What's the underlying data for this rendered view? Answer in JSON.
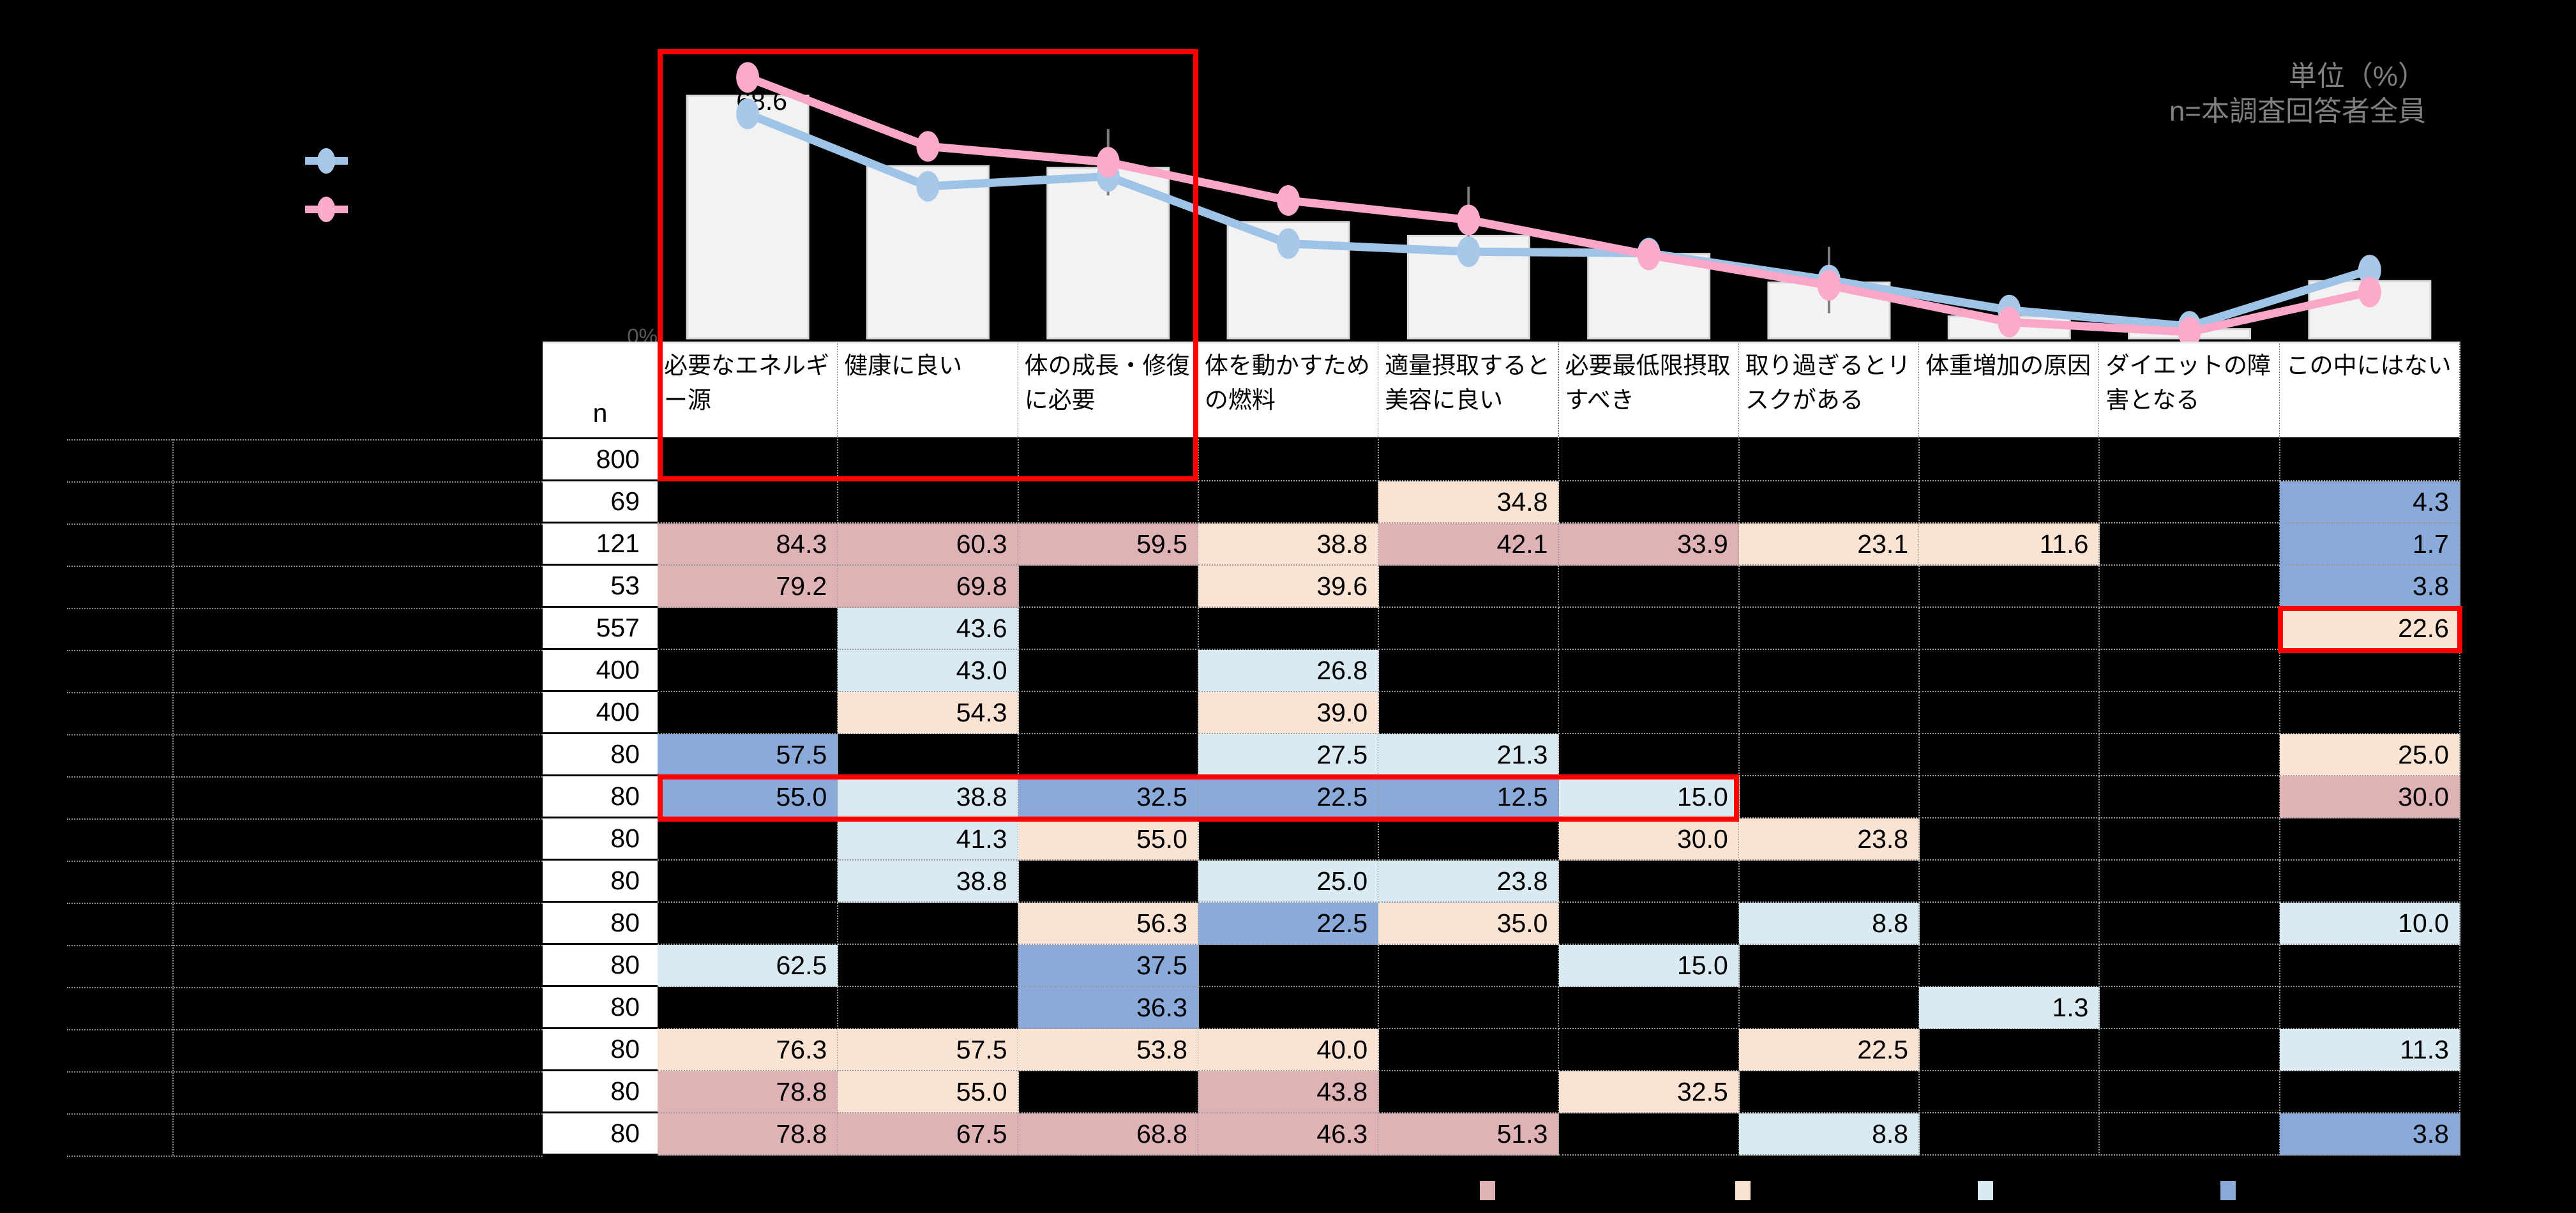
{
  "unit_note": {
    "line1": "単位（%）",
    "line2": "n=本調査回答者全員"
  },
  "axis": {
    "zero_label": "0%"
  },
  "colors": {
    "background": "#000000",
    "bar_fill": "#f2f2f2",
    "bar_stroke": "#d9d9d9",
    "line_blue": "#9dc3e6",
    "marker_blue": "#a9c7e8",
    "line_pink": "#f9a6c9",
    "marker_pink": "#fbaacb",
    "annotation_red": "#fe0000",
    "cell_high10": "#dfb2b6",
    "cell_high5": "#fbe3d4",
    "cell_low5": "#d9eaf3",
    "cell_low10": "#8aaad9",
    "note_gray": "#808080",
    "axis_gray": "#595959"
  },
  "chart_data": {
    "type": "bar+line",
    "unit": "%",
    "categories": [
      "必要なエネルギー源",
      "健康に良い",
      "体の成長・修復に必要",
      "体を動かすための燃料",
      "適量摂取すると美容に良い",
      "必要最低限摂取すべき",
      "取り過ぎるとリスクがある",
      "体重増加の原因",
      "ダイエットの障害となる",
      "この中にはない"
    ],
    "bar_series": {
      "name": "total-bars",
      "values": [
        68.6,
        48.7,
        48.2,
        32.9,
        29.0,
        23.9,
        15.8,
        6.2,
        2.6,
        16.2
      ]
    },
    "bar_labels": [
      {
        "index": 0,
        "text": "68.6"
      }
    ],
    "line_series": [
      {
        "name": "series-blue",
        "color": "#9dc3e6",
        "values": [
          63.5,
          43.0,
          45.8,
          26.8,
          24.5,
          24.1,
          16.5,
          8.0,
          3.4,
          19.3
        ]
      },
      {
        "name": "series-pink",
        "color": "#f9a6c9",
        "values": [
          73.8,
          54.3,
          49.8,
          39.0,
          33.5,
          23.6,
          15.0,
          4.6,
          1.8,
          13.1
        ]
      }
    ],
    "error_bars": [
      {
        "index": 2,
        "series": "series-pink"
      },
      {
        "index": 4,
        "series": "series-pink"
      },
      {
        "index": 6,
        "series": "series-blue"
      }
    ],
    "ylim": [
      0,
      80
    ],
    "y_zero_label": "0%",
    "legend_position": "top-left",
    "grid": false
  },
  "table": {
    "n_header": "n",
    "columns": [
      "必要なエネルギー源",
      "健康に良い",
      "体の成長・修復に必要",
      "体を動かすための燃料",
      "適量摂取すると美容に良い",
      "必要最低限摂取すべき",
      "取り過ぎるとリスクがある",
      "体重増加の原因",
      "ダイエットの障害となる",
      "この中にはない"
    ],
    "style_legend": {
      "p2": "dark-pink-high",
      "p1": "peach-high",
      "b1": "light-blue-low",
      "b2": "medium-blue-low"
    },
    "rows": [
      {
        "n": "800",
        "cells": [
          null,
          null,
          null,
          null,
          null,
          null,
          null,
          null,
          null,
          null
        ]
      },
      {
        "n": "69",
        "cells": [
          null,
          null,
          null,
          null,
          [
            "34.8",
            "p1"
          ],
          null,
          null,
          null,
          null,
          [
            "4.3",
            "b2"
          ]
        ]
      },
      {
        "n": "121",
        "cells": [
          [
            "84.3",
            "p2"
          ],
          [
            "60.3",
            "p2"
          ],
          [
            "59.5",
            "p2"
          ],
          [
            "38.8",
            "p1"
          ],
          [
            "42.1",
            "p2"
          ],
          [
            "33.9",
            "p2"
          ],
          [
            "23.1",
            "p1"
          ],
          [
            "11.6",
            "p1"
          ],
          null,
          [
            "1.7",
            "b2"
          ]
        ]
      },
      {
        "n": "53",
        "cells": [
          [
            "79.2",
            "p2"
          ],
          [
            "69.8",
            "p2"
          ],
          null,
          [
            "39.6",
            "p1"
          ],
          null,
          null,
          null,
          null,
          null,
          [
            "3.8",
            "b2"
          ]
        ]
      },
      {
        "n": "557",
        "cells": [
          null,
          [
            "43.6",
            "b1"
          ],
          null,
          null,
          null,
          null,
          null,
          null,
          null,
          [
            "22.6",
            "p1"
          ]
        ]
      },
      {
        "n": "400",
        "cells": [
          null,
          [
            "43.0",
            "b1"
          ],
          null,
          [
            "26.8",
            "b1"
          ],
          null,
          null,
          null,
          null,
          null,
          null
        ]
      },
      {
        "n": "400",
        "cells": [
          null,
          [
            "54.3",
            "p1"
          ],
          null,
          [
            "39.0",
            "p1"
          ],
          null,
          null,
          null,
          null,
          null,
          null
        ]
      },
      {
        "n": "80",
        "cells": [
          [
            "57.5",
            "b2"
          ],
          null,
          null,
          [
            "27.5",
            "b1"
          ],
          [
            "21.3",
            "b1"
          ],
          null,
          null,
          null,
          null,
          [
            "25.0",
            "p1"
          ]
        ]
      },
      {
        "n": "80",
        "cells": [
          [
            "55.0",
            "b2"
          ],
          [
            "38.8",
            "b1"
          ],
          [
            "32.5",
            "b2"
          ],
          [
            "22.5",
            "b2"
          ],
          [
            "12.5",
            "b2"
          ],
          [
            "15.0",
            "b1"
          ],
          null,
          null,
          null,
          [
            "30.0",
            "p2"
          ]
        ]
      },
      {
        "n": "80",
        "cells": [
          null,
          [
            "41.3",
            "b1"
          ],
          [
            "55.0",
            "p1"
          ],
          null,
          null,
          [
            "30.0",
            "p1"
          ],
          [
            "23.8",
            "p1"
          ],
          null,
          null,
          null
        ]
      },
      {
        "n": "80",
        "cells": [
          null,
          [
            "38.8",
            "b1"
          ],
          null,
          [
            "25.0",
            "b1"
          ],
          [
            "23.8",
            "b1"
          ],
          null,
          null,
          null,
          null,
          null
        ]
      },
      {
        "n": "80",
        "cells": [
          null,
          null,
          [
            "56.3",
            "p1"
          ],
          [
            "22.5",
            "b2"
          ],
          [
            "35.0",
            "p1"
          ],
          null,
          [
            "8.8",
            "b1"
          ],
          null,
          null,
          [
            "10.0",
            "b1"
          ]
        ]
      },
      {
        "n": "80",
        "cells": [
          [
            "62.5",
            "b1"
          ],
          null,
          [
            "37.5",
            "b2"
          ],
          null,
          null,
          [
            "15.0",
            "b1"
          ],
          null,
          null,
          null,
          null
        ]
      },
      {
        "n": "80",
        "cells": [
          null,
          null,
          [
            "36.3",
            "b2"
          ],
          null,
          null,
          null,
          null,
          [
            "1.3",
            "b1"
          ],
          null,
          null
        ]
      },
      {
        "n": "80",
        "cells": [
          [
            "76.3",
            "p1"
          ],
          [
            "57.5",
            "p1"
          ],
          [
            "53.8",
            "p1"
          ],
          [
            "40.0",
            "p1"
          ],
          null,
          null,
          [
            "22.5",
            "p1"
          ],
          null,
          null,
          [
            "11.3",
            "b1"
          ]
        ]
      },
      {
        "n": "80",
        "cells": [
          [
            "78.8",
            "p2"
          ],
          [
            "55.0",
            "p1"
          ],
          null,
          [
            "43.8",
            "p2"
          ],
          null,
          [
            "32.5",
            "p1"
          ],
          null,
          null,
          null,
          null
        ]
      },
      {
        "n": "80",
        "cells": [
          [
            "78.8",
            "p2"
          ],
          [
            "67.5",
            "p2"
          ],
          [
            "68.8",
            "p2"
          ],
          [
            "46.3",
            "p2"
          ],
          [
            "51.3",
            "p2"
          ],
          null,
          [
            "8.8",
            "b1"
          ],
          null,
          null,
          [
            "3.8",
            "b2"
          ]
        ]
      }
    ]
  },
  "annotations": [
    {
      "name": "red-box-chart-top3",
      "type": "chart-and-rows",
      "col_start": 0,
      "col_end": 2,
      "row_end": 0
    },
    {
      "name": "red-box-row",
      "type": "row-span",
      "row": 8,
      "col_start": 0,
      "col_end": 5
    },
    {
      "name": "red-box-cell",
      "type": "cell",
      "row": 4,
      "col": 9
    }
  ],
  "bottom_legend": {
    "swatches": [
      {
        "name": "swatch-dark-pink",
        "color": "#dfb2b6"
      },
      {
        "name": "swatch-peach",
        "color": "#fbe3d4"
      },
      {
        "name": "swatch-light-blue",
        "color": "#d9eaf3"
      },
      {
        "name": "swatch-medium-blue",
        "color": "#8aaad9"
      }
    ]
  }
}
